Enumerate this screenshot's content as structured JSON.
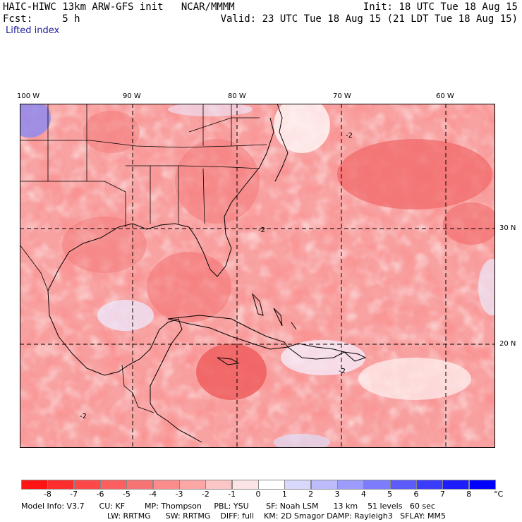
{
  "header": {
    "line1_left": "HAIC-HIWC 13km ARW-GFS init   NCAR/MMMM",
    "line1_right": "Init: 18 UTC Tue 18 Aug 15",
    "line2_left": "Fcst:     5 h",
    "line2_right": "Valid: 23 UTC Tue 18 Aug 15 (21 LDT Tue 18 Aug 15)",
    "field": "Lifted index"
  },
  "longitude_labels": [
    "100 W",
    "90 W",
    "80 W",
    "70 W",
    "60 W"
  ],
  "latitude_labels": [
    "30 N",
    "20 N"
  ],
  "contour_label": "-2",
  "colorbar": {
    "labels": [
      "-8",
      "-7",
      "-6",
      "-5",
      "-4",
      "-3",
      "-2",
      "-1",
      "0",
      "1",
      "2",
      "3",
      "4",
      "5",
      "6",
      "7",
      "8"
    ],
    "unit": "°C",
    "colors": [
      "#ff1414",
      "#ff2e2e",
      "#ff4848",
      "#fc5f5f",
      "#f87474",
      "#fa8c8c",
      "#fca6a6",
      "#fdc6c6",
      "#fde4e4",
      "#ffffff",
      "#d8d8fc",
      "#bcbcfc",
      "#9c9cfc",
      "#7c7cfc",
      "#5c5cfc",
      "#3c3cfc",
      "#1c1cfc",
      "#0000ff"
    ]
  },
  "footer": {
    "line1": "Model Info: V3.7      CU: KF        MP: Thompson     PBL: YSU       SF: Noah LSM      13 km    51 levels   60 sec",
    "line2": "LW: RRTMG      SW: RRTMG    DIFF: full    KM: 2D Smagor DAMP: Rayleigh3   SFLAY: MM5"
  },
  "map": {
    "field_fill": "#f8a2a2",
    "coast_color": "#000000",
    "grid_style": "dashed"
  }
}
